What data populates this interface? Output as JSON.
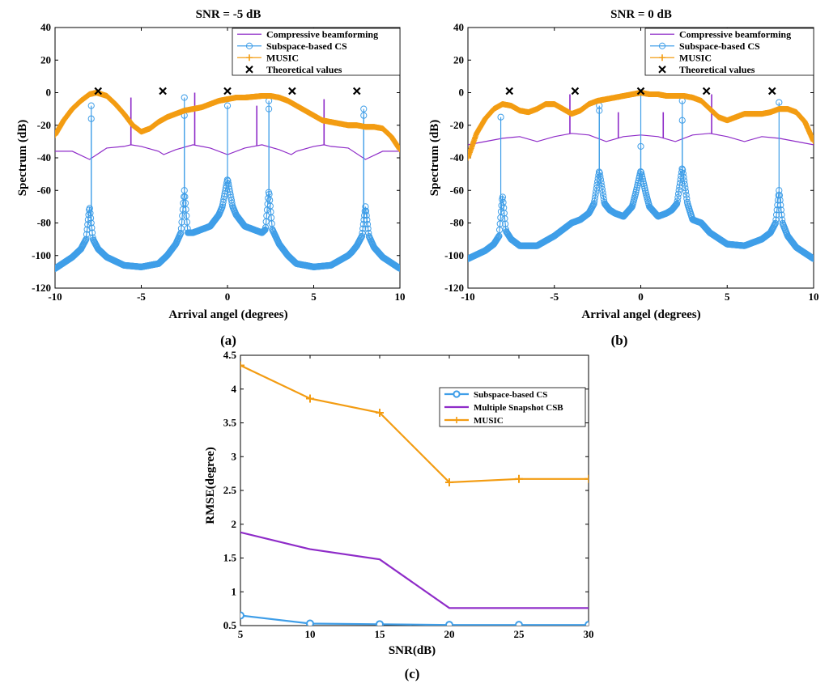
{
  "chart_data": [
    {
      "type": "line",
      "panel_label": "(a)",
      "title": "SNR = -5 dB",
      "xlabel": "Arrival angel (degrees)",
      "ylabel": "Spectrum (dB)",
      "xlim": [
        -10,
        10
      ],
      "ylim": [
        -120,
        40
      ],
      "xticks": [
        -10,
        -5,
        0,
        5,
        10
      ],
      "yticks": [
        -120,
        -100,
        -80,
        -60,
        -40,
        -20,
        0,
        20,
        40
      ],
      "legend_position": "top-right",
      "series": [
        {
          "name": "Compressive beamforming",
          "style": "line",
          "color": "#8e2bc8",
          "x": [
            -10,
            -9,
            -8,
            -7,
            -6,
            -5.6,
            -5,
            -4,
            -3.7,
            -3,
            -2,
            -1,
            0,
            1,
            2,
            3,
            3.7,
            4,
            5,
            5.6,
            6,
            7,
            8,
            9,
            10
          ],
          "y": [
            -36,
            -36,
            -41,
            -34,
            -33,
            -32,
            -33,
            -36,
            -38,
            -35,
            -32,
            -34,
            -38,
            -34,
            -32,
            -35,
            -38,
            -36,
            -33,
            -32,
            -33,
            -34,
            -41,
            -36,
            -36
          ],
          "spikes": [
            {
              "x": -5.6,
              "y": -3
            },
            {
              "x": -1.9,
              "y": 0
            },
            {
              "x": 1.7,
              "y": -8
            },
            {
              "x": 5.6,
              "y": -4
            }
          ]
        },
        {
          "name": "Subspace-based CS",
          "style": "line-circle",
          "color": "#3f9ee8",
          "x": [
            -10,
            -9,
            -8.8,
            -8.5,
            -8.2,
            -8,
            -7.8,
            -7.5,
            -7.2,
            -7,
            -6,
            -5,
            -4,
            -3.5,
            -3,
            -2.7,
            -2.5,
            -2.3,
            -2,
            -1.5,
            -1,
            -0.5,
            -0.3,
            0,
            0.3,
            0.5,
            1,
            1.5,
            2,
            2.2,
            2.4,
            2.6,
            3,
            3.5,
            4,
            5,
            6,
            7,
            7.2,
            7.5,
            7.8,
            8,
            8.2,
            8.5,
            9,
            10
          ],
          "y": [
            -108,
            -101,
            -99,
            -96,
            -90,
            -70,
            -90,
            -96,
            -99,
            -101,
            -106,
            -107,
            -105,
            -100,
            -93,
            -86,
            -60,
            -86,
            -86,
            -84,
            -82,
            -75,
            -70,
            -53,
            -70,
            -75,
            -82,
            -84,
            -86,
            -84,
            -60,
            -84,
            -93,
            -100,
            -105,
            -107,
            -106,
            -100,
            -98,
            -94,
            -88,
            -70,
            -88,
            -95,
            -101,
            -108
          ],
          "peaks": [
            {
              "x": -7.9,
              "y": -8
            },
            {
              "x": -7.9,
              "y": -16
            },
            {
              "x": -2.5,
              "y": -3
            },
            {
              "x": -2.5,
              "y": -14
            },
            {
              "x": 0,
              "y": -8
            },
            {
              "x": 2.4,
              "y": -5
            },
            {
              "x": 2.4,
              "y": -10
            },
            {
              "x": 7.9,
              "y": -10
            },
            {
              "x": 7.9,
              "y": -14
            }
          ]
        },
        {
          "name": "MUSIC",
          "style": "line-plus",
          "color": "#f39c12",
          "x": [
            -10,
            -9.5,
            -9,
            -8.5,
            -8,
            -7.6,
            -7,
            -6.5,
            -6,
            -5.5,
            -5,
            -4.5,
            -4,
            -3.5,
            -3,
            -2.5,
            -2,
            -1.5,
            -1,
            -0.5,
            0,
            0.5,
            1,
            1.5,
            2,
            2.5,
            3,
            3.5,
            4,
            4.5,
            5,
            5.5,
            6,
            6.5,
            7,
            7.5,
            8,
            8.5,
            9,
            9.5,
            10
          ],
          "y": [
            -26,
            -17,
            -10,
            -5,
            -1,
            0,
            -2,
            -7,
            -13,
            -20,
            -24,
            -22,
            -18,
            -15,
            -13,
            -11,
            -10,
            -9,
            -7,
            -5,
            -4,
            -3,
            -3,
            -2.5,
            -2,
            -2,
            -3,
            -5,
            -8,
            -11,
            -14,
            -17,
            -18,
            -19,
            -20,
            -20,
            -21,
            -21,
            -22,
            -27,
            -35
          ]
        },
        {
          "name": "Theoretical values",
          "style": "marker-x",
          "color": "#000000",
          "x": [
            -7.5,
            -3.75,
            0,
            3.75,
            7.5
          ],
          "y": [
            1,
            1,
            1,
            1,
            1
          ]
        }
      ]
    },
    {
      "type": "line",
      "panel_label": "(b)",
      "title": "SNR = 0 dB",
      "xlabel": "Arrival angel (degrees)",
      "ylabel": "Spectrum (dB)",
      "xlim": [
        -10,
        10
      ],
      "ylim": [
        -120,
        40
      ],
      "xticks": [
        -10,
        -5,
        0,
        5,
        10
      ],
      "yticks": [
        -120,
        -100,
        -80,
        -60,
        -40,
        -20,
        0,
        20,
        40
      ],
      "legend_position": "top-right",
      "series": [
        {
          "name": "Compressive beamforming",
          "style": "line",
          "color": "#8e2bc8",
          "x": [
            -10,
            -9,
            -8,
            -7,
            -6,
            -5,
            -4,
            -3,
            -2,
            -1,
            0,
            1,
            2,
            3,
            4,
            5,
            6,
            7,
            8,
            9,
            10
          ],
          "y": [
            -32,
            -30,
            -28,
            -27,
            -30,
            -27,
            -25,
            -26,
            -30,
            -27,
            -26,
            -27,
            -30,
            -26,
            -25,
            -27,
            -30,
            -27,
            -28,
            -30,
            -32
          ],
          "spikes": [
            {
              "x": -4.1,
              "y": -1
            },
            {
              "x": -1.3,
              "y": -12
            },
            {
              "x": 1.3,
              "y": -12
            },
            {
              "x": 4.1,
              "y": -1
            }
          ]
        },
        {
          "name": "Subspace-based CS",
          "style": "line-circle",
          "color": "#3f9ee8",
          "x": [
            -10,
            -9,
            -8.5,
            -8.2,
            -8,
            -7.8,
            -7.5,
            -7,
            -6,
            -5,
            -4,
            -3.5,
            -3,
            -2.7,
            -2.4,
            -2.1,
            -1.8,
            -1.5,
            -1,
            -0.5,
            -0.3,
            0,
            0.3,
            0.5,
            1,
            1.5,
            1.8,
            2.1,
            2.4,
            2.7,
            3,
            3.5,
            4,
            5,
            6,
            7,
            7.5,
            7.8,
            8,
            8.2,
            8.5,
            9,
            10
          ],
          "y": [
            -102,
            -97,
            -93,
            -88,
            -63,
            -85,
            -90,
            -94,
            -94,
            -88,
            -80,
            -78,
            -74,
            -68,
            -48,
            -68,
            -72,
            -74,
            -76,
            -70,
            -62,
            -48,
            -62,
            -70,
            -76,
            -74,
            -72,
            -68,
            -46,
            -68,
            -78,
            -80,
            -86,
            -93,
            -94,
            -90,
            -86,
            -80,
            -60,
            -80,
            -88,
            -95,
            -102
          ],
          "peaks": [
            {
              "x": -8.1,
              "y": -15
            },
            {
              "x": -2.4,
              "y": -8
            },
            {
              "x": -2.4,
              "y": -11
            },
            {
              "x": 0,
              "y": -33
            },
            {
              "x": 0,
              "y": 0
            },
            {
              "x": 2.4,
              "y": -5
            },
            {
              "x": 2.4,
              "y": -17
            },
            {
              "x": 8.0,
              "y": -6
            }
          ]
        },
        {
          "name": "MUSIC",
          "style": "line-plus",
          "color": "#f39c12",
          "x": [
            -10,
            -9.5,
            -9,
            -8.5,
            -8,
            -7.5,
            -7,
            -6.5,
            -6,
            -5.5,
            -5,
            -4.5,
            -4,
            -3.5,
            -3,
            -2.5,
            -2,
            -1.5,
            -1,
            -0.5,
            0,
            0.5,
            1,
            1.5,
            2,
            2.5,
            3,
            3.5,
            4,
            4.5,
            5,
            5.5,
            6,
            6.5,
            7,
            7.5,
            8,
            8.5,
            9,
            9.5,
            10
          ],
          "y": [
            -40,
            -25,
            -16,
            -10,
            -7,
            -8,
            -11,
            -12,
            -10,
            -7,
            -7,
            -10,
            -13,
            -11,
            -7,
            -5,
            -4,
            -3,
            -2,
            -1,
            0,
            -1,
            -1,
            -2,
            -2,
            -2,
            -3,
            -5,
            -10,
            -15,
            -17,
            -15,
            -13,
            -13,
            -13,
            -12,
            -10,
            -10,
            -12,
            -18,
            -30
          ]
        },
        {
          "name": "Theoretical values",
          "style": "marker-x",
          "color": "#000000",
          "x": [
            -7.6,
            -3.8,
            0,
            3.8,
            7.6
          ],
          "y": [
            1,
            1,
            1,
            1,
            1
          ]
        }
      ]
    },
    {
      "type": "line",
      "panel_label": "(c)",
      "title": "",
      "xlabel": "SNR(dB)",
      "ylabel": "RMSE(degree)",
      "xlim": [
        5,
        30
      ],
      "ylim": [
        0.5,
        4.5
      ],
      "xticks": [
        5,
        10,
        15,
        20,
        25,
        30
      ],
      "yticks": [
        0.5,
        1,
        1.5,
        2,
        2.5,
        3,
        3.5,
        4,
        4.5
      ],
      "ytick_labels": [
        "0.5",
        "1",
        "1.5",
        "2",
        "2.5",
        "3",
        "3.5",
        "4",
        "4.5"
      ],
      "legend_position": "top-right",
      "categories": [
        5,
        10,
        15,
        20,
        25,
        30
      ],
      "series": [
        {
          "name": "Subspace-based CS",
          "style": "line-circle",
          "color": "#3f9ee8",
          "values": [
            0.65,
            0.53,
            0.52,
            0.51,
            0.51,
            0.51
          ]
        },
        {
          "name": "Multiple Snapshot CSB",
          "style": "line",
          "color": "#8e2bc8",
          "values": [
            1.88,
            1.63,
            1.48,
            0.76,
            0.76,
            0.76
          ]
        },
        {
          "name": "MUSIC",
          "style": "line-plus",
          "color": "#f39c12",
          "values": [
            4.35,
            3.86,
            3.65,
            2.62,
            2.67,
            2.67
          ]
        }
      ]
    }
  ]
}
